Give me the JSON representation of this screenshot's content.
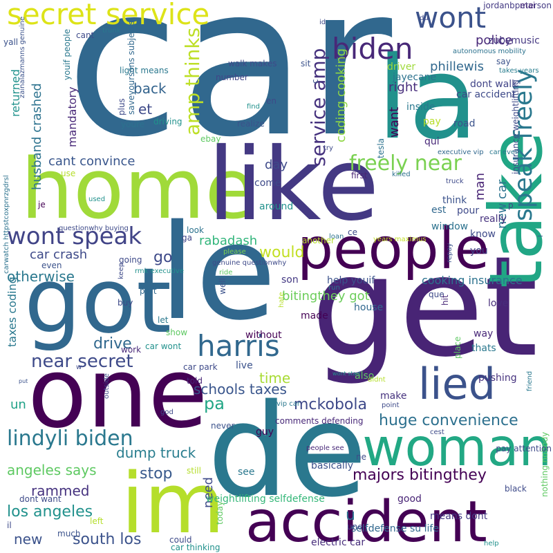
{
  "words": [
    {
      "t": "car",
      "c": "#31688e"
    },
    {
      "t": "la",
      "c": "#21918c"
    },
    {
      "t": "home",
      "c": "#a0da39"
    },
    {
      "t": "like",
      "c": "#443983"
    },
    {
      "t": "get",
      "c": "#482475"
    },
    {
      "t": "got",
      "c": "#31688e"
    },
    {
      "t": "le",
      "c": "#31688e"
    },
    {
      "t": "one",
      "c": "#440154"
    },
    {
      "t": "de",
      "c": "#2a788e"
    },
    {
      "t": "im",
      "c": "#b5de2b"
    },
    {
      "t": "take",
      "c": "#21a685"
    },
    {
      "t": "people",
      "c": "#440154"
    },
    {
      "t": "woman",
      "c": "#22a884"
    },
    {
      "t": "accident",
      "c": "#440154"
    },
    {
      "t": "lied",
      "c": "#3b528b"
    },
    {
      "t": "secret service",
      "c": "#dde318"
    },
    {
      "t": "biden",
      "c": "#482878"
    },
    {
      "t": "wont",
      "c": "#3b528b"
    },
    {
      "t": "speak freely",
      "c": "#2a788e"
    },
    {
      "t": "harris",
      "c": "#31688e"
    },
    {
      "t": "wont speak",
      "c": "#414487"
    },
    {
      "t": "amp thinks",
      "c": "#bddf26"
    },
    {
      "t": "service amp",
      "c": "#46327e"
    },
    {
      "t": "freely near",
      "c": "#7ad151"
    },
    {
      "t": "lindyli biden",
      "c": "#2a788e"
    },
    {
      "t": "near secret",
      "c": "#3e4a89"
    },
    {
      "t": "mckobola",
      "c": "#3e4989"
    },
    {
      "t": "huge convenience",
      "c": "#2d708e"
    },
    {
      "t": "majors bitingthey",
      "c": "#440154"
    },
    {
      "t": "dump truck",
      "c": "#287d8e"
    },
    {
      "t": "los angeles",
      "c": "#21918c"
    },
    {
      "t": "angeles says",
      "c": "#5ec962"
    },
    {
      "t": "south los",
      "c": "#3b528b"
    },
    {
      "t": "schools taxes",
      "c": "#39558c"
    },
    {
      "t": "coding cooking",
      "c": "#8fd744"
    },
    {
      "t": "husband crashed",
      "c": "#2c728e"
    },
    {
      "t": "phillewis",
      "c": "#31688e"
    },
    {
      "t": "police",
      "c": "#482878"
    },
    {
      "t": "back",
      "c": "#33638d"
    },
    {
      "t": "right",
      "c": "#472d7b"
    },
    {
      "t": "cant convince",
      "c": "#39568c"
    },
    {
      "t": "car crash",
      "c": "#3e4a89"
    },
    {
      "t": "otherwise",
      "c": "#2a788e"
    },
    {
      "t": "would",
      "c": "#c2df23"
    },
    {
      "t": "bitingthey got",
      "c": "#6ccd5a"
    },
    {
      "t": "rabadash",
      "c": "#31b57b"
    },
    {
      "t": "drive",
      "c": "#31688e"
    },
    {
      "t": "stop",
      "c": "#38598c"
    },
    {
      "t": "go",
      "c": "#3e4a89"
    },
    {
      "t": "time",
      "c": "#a8db34"
    },
    {
      "t": "day",
      "c": "#3e4a89"
    },
    {
      "t": "pa",
      "c": "#21a685"
    },
    {
      "t": "need",
      "c": "#3e4a89"
    },
    {
      "t": "rammed",
      "c": "#46337f"
    },
    {
      "t": "new",
      "c": "#3b528b"
    },
    {
      "t": "un",
      "c": "#1fa187"
    },
    {
      "t": "et",
      "c": "#3e4a89"
    },
    {
      "t": "mandatory",
      "c": "#482878"
    },
    {
      "t": "returned",
      "c": "#20928c"
    },
    {
      "t": "want",
      "c": "#440154"
    },
    {
      "t": "man",
      "c": "#482475"
    },
    {
      "t": "new car",
      "c": "#2c728e"
    },
    {
      "t": "taxes coding",
      "c": "#2a788e"
    },
    {
      "t": "cooking insurance",
      "c": "#2c728e"
    },
    {
      "t": "weightlifting selfdefense",
      "c": "#35b779"
    },
    {
      "t": "electric car",
      "c": "#472d7b"
    },
    {
      "t": "u",
      "c": "#2d708e"
    },
    {
      "t": "dont walk",
      "c": "#414487"
    },
    {
      "t": "car accident",
      "c": "#3e4a89"
    },
    {
      "t": "driver",
      "c": "#9fda3a"
    },
    {
      "t": "jayecane",
      "c": "#2c728e"
    },
    {
      "t": "zubymusic",
      "c": "#453882"
    },
    {
      "t": "jordanbpeterson",
      "c": "#443a83"
    },
    {
      "t": "say",
      "c": "#3b528b"
    },
    {
      "t": "takes years",
      "c": "#287d8e"
    },
    {
      "t": "insurance weightlifting",
      "c": "#3e4a89"
    },
    {
      "t": "road",
      "c": "#3b528b"
    },
    {
      "t": "pay",
      "c": "#b8de29"
    },
    {
      "t": "inside",
      "c": "#2a788e"
    },
    {
      "t": "tesla",
      "c": "#2c728e"
    },
    {
      "t": "first",
      "c": "#482475"
    },
    {
      "t": "killed",
      "c": "#2d708e"
    },
    {
      "t": "come",
      "c": "#3e4a89"
    },
    {
      "t": "around",
      "c": "#21918c"
    },
    {
      "t": "think",
      "c": "#3b528b"
    },
    {
      "t": "est",
      "c": "#31688e"
    },
    {
      "t": "pour",
      "c": "#3e4a89"
    },
    {
      "t": "really",
      "c": "#46327e"
    },
    {
      "t": "window",
      "c": "#2c728e"
    },
    {
      "t": "know",
      "c": "#3e4a89"
    },
    {
      "t": "you",
      "c": "#414487"
    },
    {
      "t": "love",
      "c": "#472d7b"
    },
    {
      "t": "way",
      "c": "#482878"
    },
    {
      "t": "thats",
      "c": "#2a788e"
    },
    {
      "t": "pushing",
      "c": "#46327e"
    },
    {
      "t": "help youif",
      "c": "#3b528b"
    },
    {
      "t": "son",
      "c": "#443983"
    },
    {
      "t": "que",
      "c": "#3e4a89"
    },
    {
      "t": "hit",
      "c": "#482878"
    },
    {
      "t": "house",
      "c": "#31688e"
    },
    {
      "t": "made",
      "c": "#440154"
    },
    {
      "t": "also",
      "c": "#5ec962"
    },
    {
      "t": "make",
      "c": "#46327e"
    },
    {
      "t": "guy",
      "c": "#440154"
    },
    {
      "t": "see",
      "c": "#2a788e"
    },
    {
      "t": "basically",
      "c": "#3b528b"
    },
    {
      "t": "good",
      "c": "#482475"
    },
    {
      "t": "means dont",
      "c": "#443983"
    },
    {
      "t": "selfdefense su life",
      "c": "#31688e"
    },
    {
      "t": "une",
      "c": "#3e4a89"
    },
    {
      "t": "comments defending",
      "c": "#482878"
    },
    {
      "t": "ne",
      "c": "#3e4a89"
    },
    {
      "t": "live",
      "c": "#3b528b"
    },
    {
      "t": "without",
      "c": "#440154"
    },
    {
      "t": "told",
      "c": "#482475"
    },
    {
      "t": "car park",
      "c": "#3e4a89"
    },
    {
      "t": "work",
      "c": "#482878"
    },
    {
      "t": "car wont",
      "c": "#21918c"
    },
    {
      "t": "show",
      "c": "#5ec962"
    },
    {
      "t": "let",
      "c": "#2a788e"
    },
    {
      "t": "part",
      "c": "#31688e"
    },
    {
      "t": "buy",
      "c": "#3e4a89"
    },
    {
      "t": "even",
      "c": "#3b528b"
    },
    {
      "t": "je",
      "c": "#440154"
    },
    {
      "t": "going",
      "c": "#3e4a89"
    },
    {
      "t": "look",
      "c": "#2c728e"
    },
    {
      "t": "ga",
      "c": "#414487"
    },
    {
      "t": "light means",
      "c": "#2a788e"
    },
    {
      "t": "number",
      "c": "#414487"
    },
    {
      "t": "walk makes",
      "c": "#3e4a89"
    },
    {
      "t": "realize",
      "c": "#3b528b"
    },
    {
      "t": "youre",
      "c": "#2c728e"
    },
    {
      "t": "driving",
      "c": "#21918c"
    },
    {
      "t": "plus",
      "c": "#3e4a89"
    },
    {
      "t": "yall",
      "c": "#3b528b"
    },
    {
      "t": "cant",
      "c": "#3e4a89"
    },
    {
      "t": "sit",
      "c": "#3b528b"
    },
    {
      "t": "mai",
      "c": "#482878"
    },
    {
      "t": "du",
      "c": "#3e4a89"
    },
    {
      "t": "trunk",
      "c": "#2a788e"
    },
    {
      "t": "autonomous mobility",
      "c": "#2c728e"
    },
    {
      "t": "executive vip",
      "c": "#31688e"
    },
    {
      "t": "car even",
      "c": "#2a788e"
    },
    {
      "t": "truck",
      "c": "#3e4a89"
    },
    {
      "t": "p",
      "c": "#414487"
    },
    {
      "t": "ebay",
      "c": "#5ec962"
    },
    {
      "t": "use",
      "c": "#b5de2b"
    },
    {
      "t": "used",
      "c": "#21918c"
    },
    {
      "t": "questionwhy buying",
      "c": "#3e4a89"
    },
    {
      "t": "please",
      "c": "#7ad151"
    },
    {
      "t": "genuine questionwhy",
      "c": "#3e4a89"
    },
    {
      "t": "rmk executive",
      "c": "#21918c"
    },
    {
      "t": "ride",
      "c": "#5ec962"
    },
    {
      "t": "another",
      "c": "#b5de2b"
    },
    {
      "t": "ce",
      "c": "#3e4a89"
    },
    {
      "t": "loan",
      "c": "#2c728e"
    },
    {
      "t": "years maximus",
      "c": "#c2df23"
    },
    {
      "t": "repay",
      "c": "#3b528b"
    },
    {
      "t": "run",
      "c": "#2a788e"
    },
    {
      "t": "qui",
      "c": "#482878"
    },
    {
      "t": "try",
      "c": "#3e4a89"
    },
    {
      "t": "find",
      "c": "#21918c"
    },
    {
      "t": "en",
      "c": "#3e4a89"
    },
    {
      "t": "c",
      "c": "#3b528b"
    },
    {
      "t": "id",
      "c": "#3e4a89"
    },
    {
      "t": "keep",
      "c": "#3e4a89"
    },
    {
      "t": "well",
      "c": "#3b528b"
    },
    {
      "t": "hate",
      "c": "#b5de2b"
    },
    {
      "t": "place",
      "c": "#5ec962"
    },
    {
      "t": "wont start",
      "c": "#21918c"
    },
    {
      "t": "didnt",
      "c": "#b5de2b"
    },
    {
      "t": "point",
      "c": "#3e4a89"
    },
    {
      "t": "vip car",
      "c": "#2a788e"
    },
    {
      "t": "w",
      "c": "#3e4a89"
    },
    {
      "t": "put",
      "c": "#3b528b"
    },
    {
      "t": "god",
      "c": "#3e4a89"
    },
    {
      "t": "outside",
      "c": "#3e4a89"
    },
    {
      "t": "never",
      "c": "#3b528b"
    },
    {
      "t": "still",
      "c": "#b5de2b"
    },
    {
      "t": "today",
      "c": "#5ec962"
    },
    {
      "t": "left",
      "c": "#b5de2b"
    },
    {
      "t": "il",
      "c": "#3e4a89"
    },
    {
      "t": "much",
      "c": "#3b528b"
    },
    {
      "t": "could",
      "c": "#3e4a89"
    },
    {
      "t": "car thinking",
      "c": "#21918c"
    },
    {
      "t": "dont want",
      "c": "#3e4a89"
    },
    {
      "t": "people see",
      "c": "#482878"
    },
    {
      "t": "cest",
      "c": "#3e4a89"
    },
    {
      "t": "friend",
      "c": "#2a788e"
    },
    {
      "t": "nothing nobody",
      "c": "#5ec962"
    },
    {
      "t": "black",
      "c": "#3e4a89"
    },
    {
      "t": "help",
      "c": "#21918c"
    },
    {
      "t": "pay attention",
      "c": "#3e4a89"
    },
    {
      "t": "l",
      "c": "#3b528b"
    },
    {
      "t": "youif people",
      "c": "#2a788e"
    },
    {
      "t": "saveyoursons subjects",
      "c": "#31688e"
    },
    {
      "t": "zainalazmanns genuine",
      "c": "#3b528b"
    },
    {
      "t": "carwatch httpstcoxpnrzgdrsl",
      "c": "#2c728e"
    },
    {
      "t": "getting",
      "c": "#5ec962"
    }
  ]
}
